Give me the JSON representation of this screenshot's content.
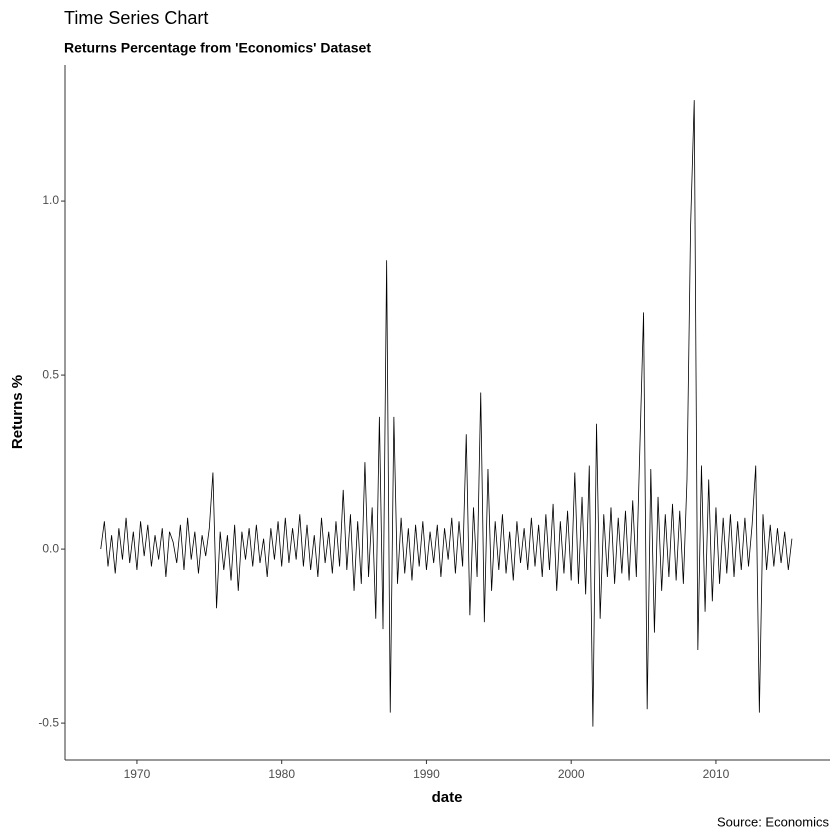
{
  "chart_data": {
    "type": "line",
    "title": "Time Series Chart",
    "subtitle": "Returns Percentage from 'Economics' Dataset",
    "caption": "Source: Economics",
    "x_label": "date",
    "y_label": "Returns %",
    "color": "#000000",
    "xlim": [
      1965.03,
      2017.88
    ],
    "xticks": [
      1970,
      1980,
      1990,
      2000,
      2010
    ],
    "ylim": [
      -0.606,
      1.391
    ],
    "yticks": [
      -0.5,
      {
        "value": 0,
        "label": "0.0"
      },
      0.5,
      {
        "value": 1,
        "label": "1.0"
      }
    ],
    "grid": false,
    "x": [
      1967.5,
      1967.75,
      1968,
      1968.25,
      1968.5,
      1968.75,
      1969,
      1969.25,
      1969.5,
      1969.75,
      1970,
      1970.25,
      1970.5,
      1970.75,
      1971,
      1971.25,
      1971.5,
      1971.75,
      1972,
      1972.25,
      1972.5,
      1972.75,
      1973,
      1973.25,
      1973.5,
      1973.75,
      1974,
      1974.25,
      1974.5,
      1974.75,
      1975,
      1975.25,
      1975.5,
      1975.75,
      1976,
      1976.25,
      1976.5,
      1976.75,
      1977,
      1977.25,
      1977.5,
      1977.75,
      1978,
      1978.25,
      1978.5,
      1978.75,
      1979,
      1979.25,
      1979.5,
      1979.75,
      1980,
      1980.25,
      1980.5,
      1980.75,
      1981,
      1981.25,
      1981.5,
      1981.75,
      1982,
      1982.25,
      1982.5,
      1982.75,
      1983,
      1983.25,
      1983.5,
      1983.75,
      1984,
      1984.25,
      1984.5,
      1984.75,
      1985,
      1985.25,
      1985.5,
      1985.75,
      1986,
      1986.25,
      1986.5,
      1986.75,
      1987,
      1987.25,
      1987.5,
      1987.75,
      1988,
      1988.25,
      1988.5,
      1988.75,
      1989,
      1989.25,
      1989.5,
      1989.75,
      1990,
      1990.25,
      1990.5,
      1990.75,
      1991,
      1991.25,
      1991.5,
      1991.75,
      1992,
      1992.25,
      1992.5,
      1992.75,
      1993,
      1993.25,
      1993.5,
      1993.75,
      1994,
      1994.25,
      1994.5,
      1994.75,
      1995,
      1995.25,
      1995.5,
      1995.75,
      1996,
      1996.25,
      1996.5,
      1996.75,
      1997,
      1997.25,
      1997.5,
      1997.75,
      1998,
      1998.25,
      1998.5,
      1998.75,
      1999,
      1999.25,
      1999.5,
      1999.75,
      2000,
      2000.25,
      2000.5,
      2000.75,
      2001,
      2001.25,
      2001.5,
      2001.75,
      2002,
      2002.25,
      2002.5,
      2002.75,
      2003,
      2003.25,
      2003.5,
      2003.75,
      2004,
      2004.25,
      2004.5,
      2004.75,
      2005,
      2005.25,
      2005.5,
      2005.75,
      2006,
      2006.25,
      2006.5,
      2006.75,
      2007,
      2007.25,
      2007.5,
      2007.75,
      2008,
      2008.25,
      2008.5,
      2008.75,
      2009,
      2009.25,
      2009.5,
      2009.75,
      2010,
      2010.25,
      2010.5,
      2010.75,
      2011,
      2011.25,
      2011.5,
      2011.75,
      2012,
      2012.25,
      2012.5,
      2012.75,
      2013,
      2013.25,
      2013.5,
      2013.75,
      2014,
      2014.25,
      2014.5,
      2014.75,
      2015,
      2015.25
    ],
    "values": [
      0,
      0.08,
      -0.05,
      0.04,
      -0.07,
      0.06,
      -0.03,
      0.09,
      -0.04,
      0.05,
      -0.06,
      0.08,
      -0.02,
      0.07,
      -0.05,
      0.04,
      -0.03,
      0.06,
      -0.08,
      0.05,
      0.02,
      -0.04,
      0.07,
      -0.06,
      0.09,
      -0.03,
      0.05,
      -0.07,
      0.04,
      -0.02,
      0.06,
      0.22,
      -0.17,
      0.05,
      -0.06,
      0.04,
      -0.09,
      0.07,
      -0.12,
      0.05,
      -0.03,
      0.06,
      -0.05,
      0.07,
      -0.04,
      0.03,
      -0.08,
      0.06,
      -0.03,
      0.08,
      -0.05,
      0.09,
      -0.04,
      0.06,
      -0.03,
      0.1,
      -0.05,
      0.07,
      -0.06,
      0.04,
      -0.08,
      0.09,
      -0.04,
      0.05,
      -0.07,
      0.08,
      -0.05,
      0.17,
      -0.06,
      0.1,
      -0.12,
      0.08,
      -0.1,
      0.25,
      -0.08,
      0.12,
      -0.2,
      0.38,
      -0.23,
      0.83,
      -0.47,
      0.38,
      -0.1,
      0.09,
      -0.07,
      0.06,
      -0.09,
      0.07,
      -0.05,
      0.08,
      -0.06,
      0.05,
      -0.04,
      0.07,
      -0.08,
      0.06,
      -0.03,
      0.09,
      -0.07,
      0.08,
      -0.05,
      0.33,
      -0.19,
      0.12,
      -0.08,
      0.45,
      -0.21,
      0.23,
      -0.12,
      0.08,
      -0.06,
      0.1,
      -0.07,
      0.05,
      -0.09,
      0.08,
      -0.04,
      0.06,
      -0.06,
      0.09,
      -0.05,
      0.07,
      -0.08,
      0.1,
      -0.06,
      0.13,
      -0.12,
      0.08,
      -0.07,
      0.11,
      -0.09,
      0.22,
      -0.1,
      0.15,
      -0.13,
      0.24,
      -0.51,
      0.36,
      -0.2,
      0.1,
      -0.08,
      0.12,
      -0.1,
      0.09,
      -0.07,
      0.11,
      -0.09,
      0.14,
      -0.08,
      0.3,
      0.68,
      -0.46,
      0.23,
      -0.24,
      0.15,
      -0.12,
      0.1,
      -0.08,
      0.13,
      -0.09,
      0.11,
      -0.1,
      0.2,
      0.93,
      1.29,
      -0.29,
      0.24,
      -0.18,
      0.2,
      -0.15,
      0.12,
      -0.1,
      0.09,
      -0.07,
      0.1,
      -0.08,
      0.08,
      -0.06,
      0.09,
      -0.05,
      0.07,
      0.24,
      -0.47,
      0.1,
      -0.06,
      0.07,
      -0.05,
      0.06,
      -0.04,
      0.05,
      -0.06,
      0.03
    ]
  }
}
